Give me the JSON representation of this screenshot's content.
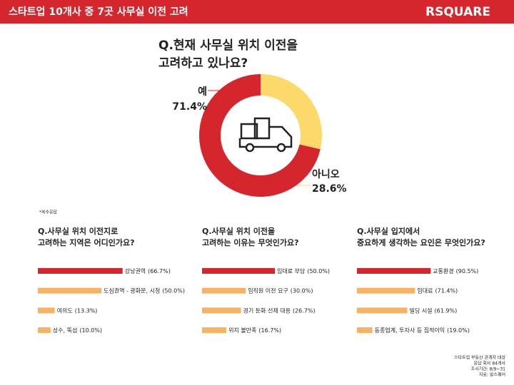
{
  "header": {
    "title": "스타트업 10개사 중 7곳 사무실 이전 고려",
    "brand": "RSQUARE"
  },
  "note": "*복수응답",
  "source": [
    "스타트업 부동산 관계자 대상",
    "응답 회사 84개사",
    "조사기간: 8/9~31",
    "자료: 알스퀘어"
  ],
  "chart_data": [
    {
      "type": "donut",
      "title": [
        "Q.현재 사무실 위치 이전을",
        "고려하고 있나요?"
      ],
      "categories": [
        "예",
        "아니오"
      ],
      "values": [
        71.4,
        28.6
      ],
      "value_labels": [
        "71.4%",
        "28.6%"
      ],
      "colors": [
        "#d6262d",
        "#fdd96b"
      ]
    },
    {
      "type": "bar",
      "title": [
        "Q.사무실 위치 이전지로",
        "고려하는 지역은 어디인가요?"
      ],
      "categories": [
        "강남권역",
        "도심권역 - 광화문, 시청",
        "여의도",
        "성수, 뚝섬"
      ],
      "values": [
        66.7,
        50.0,
        13.3,
        10.0
      ],
      "value_labels": [
        "(66.7%)",
        "(50.0%)",
        "(13.3%)",
        "(10.0%)"
      ],
      "colors": [
        "#d6262d",
        "#f7b264",
        "#f7b264",
        "#f7b264"
      ]
    },
    {
      "type": "bar",
      "title": [
        "Q.사무실 위치 이전을",
        "고려하는 이유는 무엇인가요?"
      ],
      "categories": [
        "임대료 부담",
        "임직원 이전 요구",
        "경기 둔화 선제 대응",
        "위치 불만족"
      ],
      "values": [
        50.0,
        30.0,
        26.7,
        16.7
      ],
      "value_labels": [
        "(50.0%)",
        "(30.0%)",
        "(26.7%)",
        "(16.7%)"
      ],
      "colors": [
        "#d6262d",
        "#f7b264",
        "#f7b264",
        "#f7b264"
      ]
    },
    {
      "type": "bar",
      "title": [
        "Q.사무실 입지에서",
        "중요하게 생각하는 요인은 무엇인가요?"
      ],
      "categories": [
        "교통환경",
        "임대료",
        "빌딩 시설",
        "동종업계, 투자사 등 집적이익"
      ],
      "values": [
        90.5,
        71.4,
        61.9,
        19.0
      ],
      "value_labels": [
        "(90.5%)",
        "(71.4%)",
        "(61.9%)",
        "(19.0%)"
      ],
      "colors": [
        "#d6262d",
        "#f7b264",
        "#f7b264",
        "#f7b264"
      ]
    }
  ]
}
